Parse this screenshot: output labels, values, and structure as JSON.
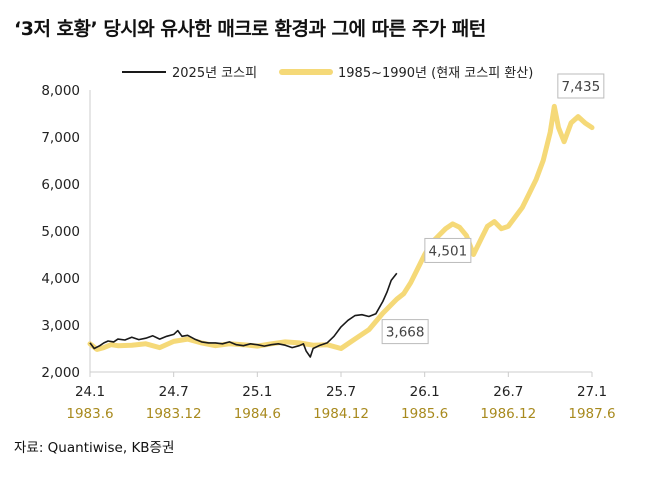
{
  "title": "‘3저 호황’ 당시와 유사한 매크로 환경과 그에 따른 주가 패턴",
  "source": "자료: Quantiwise, KB증권",
  "colors": {
    "kospi2025": "#1a1a1a",
    "kospi1985": "#f5d978",
    "xlabel2": "#a88a1e"
  },
  "chart_data": {
    "type": "line",
    "ylim": [
      2000,
      8000
    ],
    "yticks": [
      "2,000",
      "3,000",
      "4,000",
      "5,000",
      "6,000",
      "7,000",
      "8,000"
    ],
    "xlim": [
      0,
      36
    ],
    "xticks": [
      {
        "x": 0,
        "label": "24.1",
        "label2": "1983.6"
      },
      {
        "x": 6,
        "label": "24.7",
        "label2": "1983.12"
      },
      {
        "x": 12,
        "label": "25.1",
        "label2": "1984.6"
      },
      {
        "x": 18,
        "label": "25.7",
        "label2": "1984.12"
      },
      {
        "x": 24,
        "label": "26.1",
        "label2": "1985.6"
      },
      {
        "x": 30,
        "label": "26.7",
        "label2": "1986.12"
      },
      {
        "x": 36,
        "label": "27.1",
        "label2": "1987.6"
      }
    ],
    "legend": [
      "2025년 코스피",
      "1985~1990년 (현재 코스피 환산)"
    ],
    "series": [
      {
        "name": "2025년 코스피",
        "color": "#1a1a1a",
        "x": [
          0,
          0.3,
          0.7,
          1.0,
          1.3,
          1.7,
          2.0,
          2.5,
          3.0,
          3.5,
          4.0,
          4.5,
          5.0,
          5.5,
          6.0,
          6.3,
          6.6,
          7.0,
          7.5,
          8.0,
          8.5,
          9.0,
          9.5,
          10.0,
          10.5,
          11.0,
          11.5,
          12.0,
          12.5,
          13.0,
          13.5,
          14.0,
          14.5,
          15.0,
          15.3,
          15.5,
          15.8,
          16.0,
          16.5,
          17.0,
          17.5,
          18.0,
          18.5,
          19.0,
          19.5,
          20.0,
          20.5,
          21.0,
          21.3,
          21.6,
          22.0
        ],
        "values": [
          2620,
          2500,
          2560,
          2620,
          2660,
          2640,
          2700,
          2680,
          2740,
          2690,
          2720,
          2770,
          2700,
          2760,
          2800,
          2880,
          2760,
          2780,
          2700,
          2640,
          2620,
          2620,
          2600,
          2640,
          2580,
          2560,
          2600,
          2580,
          2550,
          2580,
          2600,
          2570,
          2520,
          2560,
          2600,
          2450,
          2320,
          2500,
          2570,
          2620,
          2760,
          2960,
          3100,
          3200,
          3220,
          3180,
          3240,
          3500,
          3700,
          3950,
          4100
        ]
      },
      {
        "name": "1985~1990년 (현재 코스피 환산)",
        "color": "#f5d978",
        "x": [
          0,
          0.5,
          1.0,
          1.5,
          2.0,
          3.0,
          4.0,
          5.0,
          6.0,
          7.0,
          8.0,
          9.0,
          10.0,
          11.0,
          12.0,
          13.0,
          14.0,
          15.0,
          16.0,
          17.0,
          18.0,
          19.0,
          20.0,
          21.0,
          22.0,
          22.5,
          23.0,
          23.5,
          24.0,
          24.5,
          25.0,
          25.5,
          26.0,
          26.5,
          27.0,
          27.5,
          28.0,
          28.5,
          29.0,
          29.5,
          30.0,
          30.5,
          31.0,
          31.5,
          32.0,
          32.5,
          33.0,
          33.3,
          33.6,
          34.0,
          34.5,
          35.0,
          35.5,
          36.0
        ],
        "values": [
          2600,
          2480,
          2520,
          2580,
          2560,
          2570,
          2600,
          2520,
          2650,
          2700,
          2620,
          2560,
          2600,
          2580,
          2550,
          2600,
          2640,
          2620,
          2570,
          2580,
          2500,
          2700,
          2900,
          3250,
          3550,
          3668,
          3900,
          4200,
          4500,
          4750,
          4900,
          5050,
          5150,
          5080,
          4900,
          4501,
          4800,
          5100,
          5200,
          5050,
          5100,
          5300,
          5500,
          5800,
          6100,
          6500,
          7100,
          7650,
          7200,
          6900,
          7300,
          7435,
          7300,
          7200
        ]
      }
    ],
    "annotations": [
      {
        "label": "3,668",
        "x": 22.6,
        "y": 3668
      },
      {
        "label": "4,501",
        "x": 27.6,
        "y": 4501
      },
      {
        "label": "7,435",
        "x": 35.2,
        "y": 7435
      }
    ]
  }
}
